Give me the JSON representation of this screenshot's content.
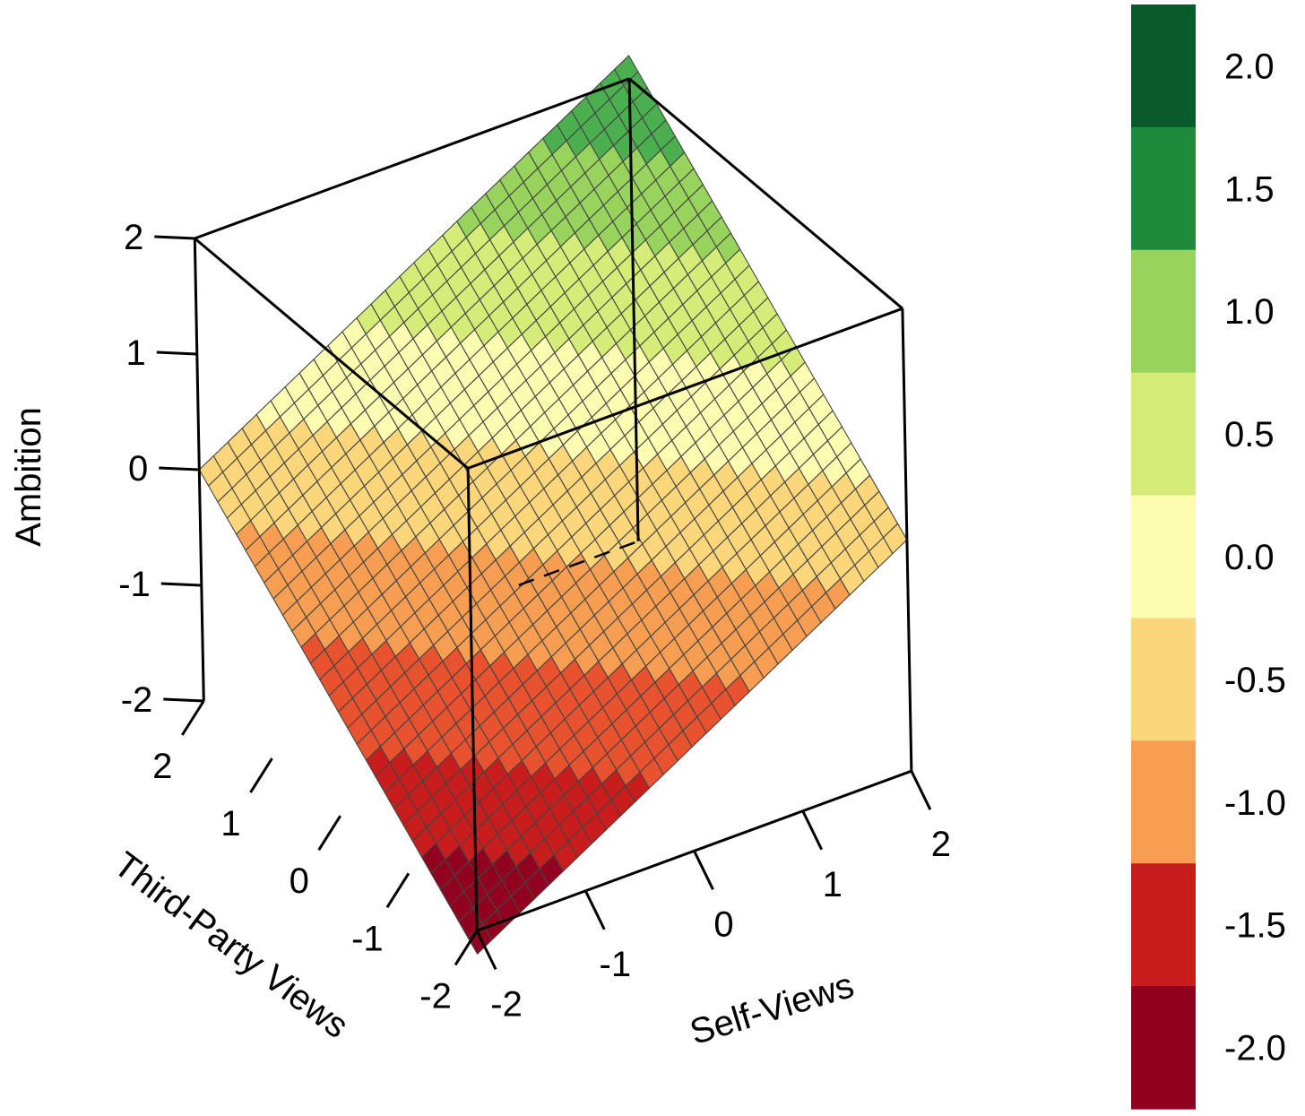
{
  "chart_data": {
    "type": "surface",
    "title": "",
    "axes": {
      "x": {
        "label": "Self-Views",
        "range": [
          -2,
          2
        ],
        "ticks": [
          "-2",
          "-1",
          "0",
          "1",
          "2"
        ]
      },
      "y": {
        "label": "Third-Party Views",
        "range": [
          -2,
          2
        ],
        "ticks": [
          "-2",
          "-1",
          "0",
          "1",
          "2"
        ]
      },
      "z": {
        "label": "Ambition",
        "range": [
          -2,
          2
        ],
        "ticks": [
          "-2",
          "-1",
          "0",
          "1",
          "2"
        ]
      }
    },
    "surface": {
      "description_formula": "z = 0.55*x + 0.55*y (plane, increasing in both Self-Views and Third-Party Views)",
      "coef_x": 0.55,
      "coef_y": 0.55,
      "grid": 30
    },
    "colorbar": {
      "labels": [
        "2.0",
        "1.5",
        "1.0",
        "0.5",
        "0.0",
        "-0.5",
        "-1.0",
        "-1.5",
        "-2.0"
      ],
      "breaks": [
        -2.2,
        -1.75,
        -1.25,
        -0.75,
        -0.25,
        0.25,
        0.75,
        1.25,
        1.75,
        2.2
      ],
      "colors": [
        "#91001f",
        "#c91c1c",
        "#e8522f",
        "#f89e52",
        "#fbd67a",
        "#fdfdb2",
        "#d5ec79",
        "#97d35d",
        "#4caf4f",
        "#0b5a2c"
      ],
      "bar_colors_top_to_bottom": [
        "#0b5a2c",
        "#1e8a3c",
        "#97d35d",
        "#d5ec79",
        "#fdfdb2",
        "#fbd67a",
        "#f89e52",
        "#c91c1c",
        "#91001f"
      ]
    }
  }
}
